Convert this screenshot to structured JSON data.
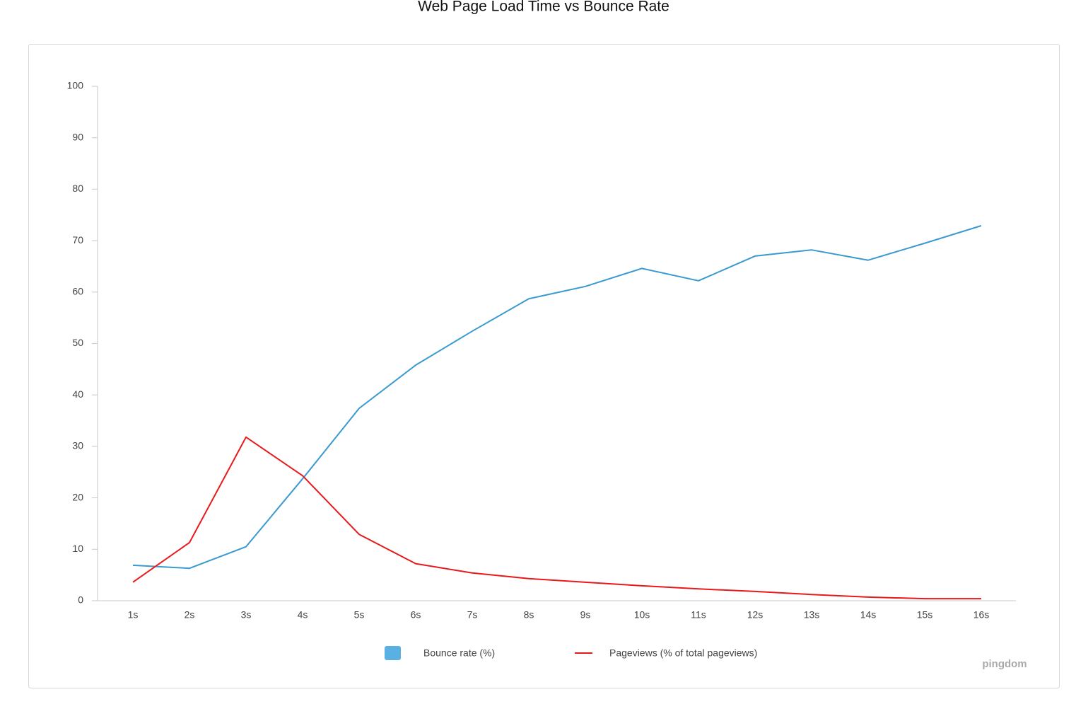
{
  "chart_data": {
    "type": "line",
    "title": "Web Page Load Time vs Bounce Rate",
    "categories": [
      "1s",
      "2s",
      "3s",
      "4s",
      "5s",
      "6s",
      "7s",
      "8s",
      "9s",
      "10s",
      "11s",
      "12s",
      "13s",
      "14s",
      "15s",
      "16s"
    ],
    "series": [
      {
        "name": "Bounce rate (%)",
        "color": "#3a9ad0",
        "legend_marker": "square",
        "legend_color": "#5aafe3",
        "values": [
          6.9,
          6.3,
          10.5,
          23.7,
          37.4,
          45.8,
          52.4,
          58.7,
          61.1,
          64.6,
          62.2,
          67.0,
          68.2,
          66.2,
          69.5,
          72.9
        ]
      },
      {
        "name": "Pageviews (% of total pageviews)",
        "color": "#e8191b",
        "legend_marker": "line",
        "values": [
          3.6,
          11.3,
          31.8,
          24.3,
          12.9,
          7.2,
          5.4,
          4.3,
          3.6,
          2.9,
          2.3,
          1.8,
          1.2,
          0.7,
          0.4,
          0.4
        ]
      }
    ],
    "ylim": [
      0,
      100
    ],
    "yticks": [
      0,
      10,
      20,
      30,
      40,
      50,
      60,
      70,
      80,
      90,
      100
    ],
    "grid": false,
    "legend_position": "bottom",
    "watermark": "pingdom"
  }
}
